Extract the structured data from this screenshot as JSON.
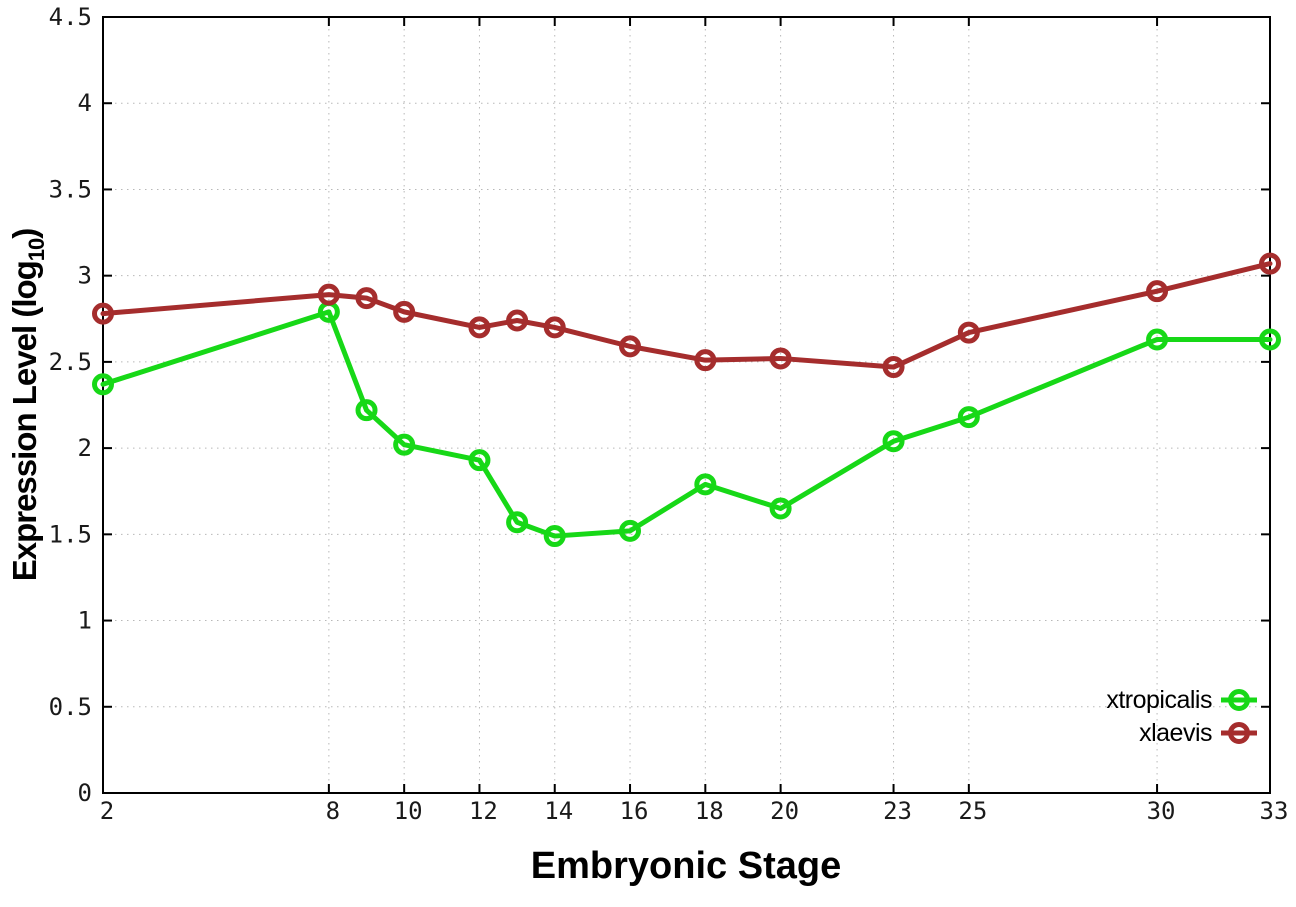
{
  "figure": {
    "background": "#ffffff"
  },
  "chart_data": {
    "type": "line",
    "title": "",
    "xlabel": "Embryonic Stage",
    "ylabel_prefix": "Expression Level (log",
    "ylabel_subscript": "10",
    "ylabel_suffix": ")",
    "x": [
      2,
      8,
      9,
      10,
      12,
      13,
      14,
      16,
      18,
      20,
      23,
      25,
      30,
      33
    ],
    "x_tick_labels": [
      "2",
      "8",
      "10",
      "12",
      "14",
      "16",
      "18",
      "20",
      "23",
      "25",
      "30",
      "33"
    ],
    "y_tick_labels": [
      "0",
      "0.5",
      "1",
      "1.5",
      "2",
      "2.5",
      "3",
      "3.5",
      "4",
      "4.5"
    ],
    "xlim": [
      2,
      33
    ],
    "ylim": [
      0,
      4.5
    ],
    "grid": "dotted",
    "legend_position": "inside-bottom-right",
    "series": [
      {
        "name": "xtropicalis",
        "color": "#17D817",
        "marker": "open-circle",
        "values": [
          2.37,
          2.79,
          2.22,
          2.02,
          1.93,
          1.57,
          1.49,
          1.52,
          1.79,
          1.65,
          2.04,
          2.18,
          2.63,
          2.63
        ]
      },
      {
        "name": "xlaevis",
        "color": "#A52D2D",
        "marker": "open-circle",
        "values": [
          2.78,
          2.89,
          2.87,
          2.79,
          2.7,
          2.74,
          2.7,
          2.59,
          2.51,
          2.52,
          2.47,
          2.67,
          2.91,
          3.07
        ]
      }
    ]
  },
  "style_colors": {
    "grid": "#b8b8b8",
    "axis": "#000000",
    "tick_text": "#1a1a1a",
    "legend_text": "#000000"
  }
}
